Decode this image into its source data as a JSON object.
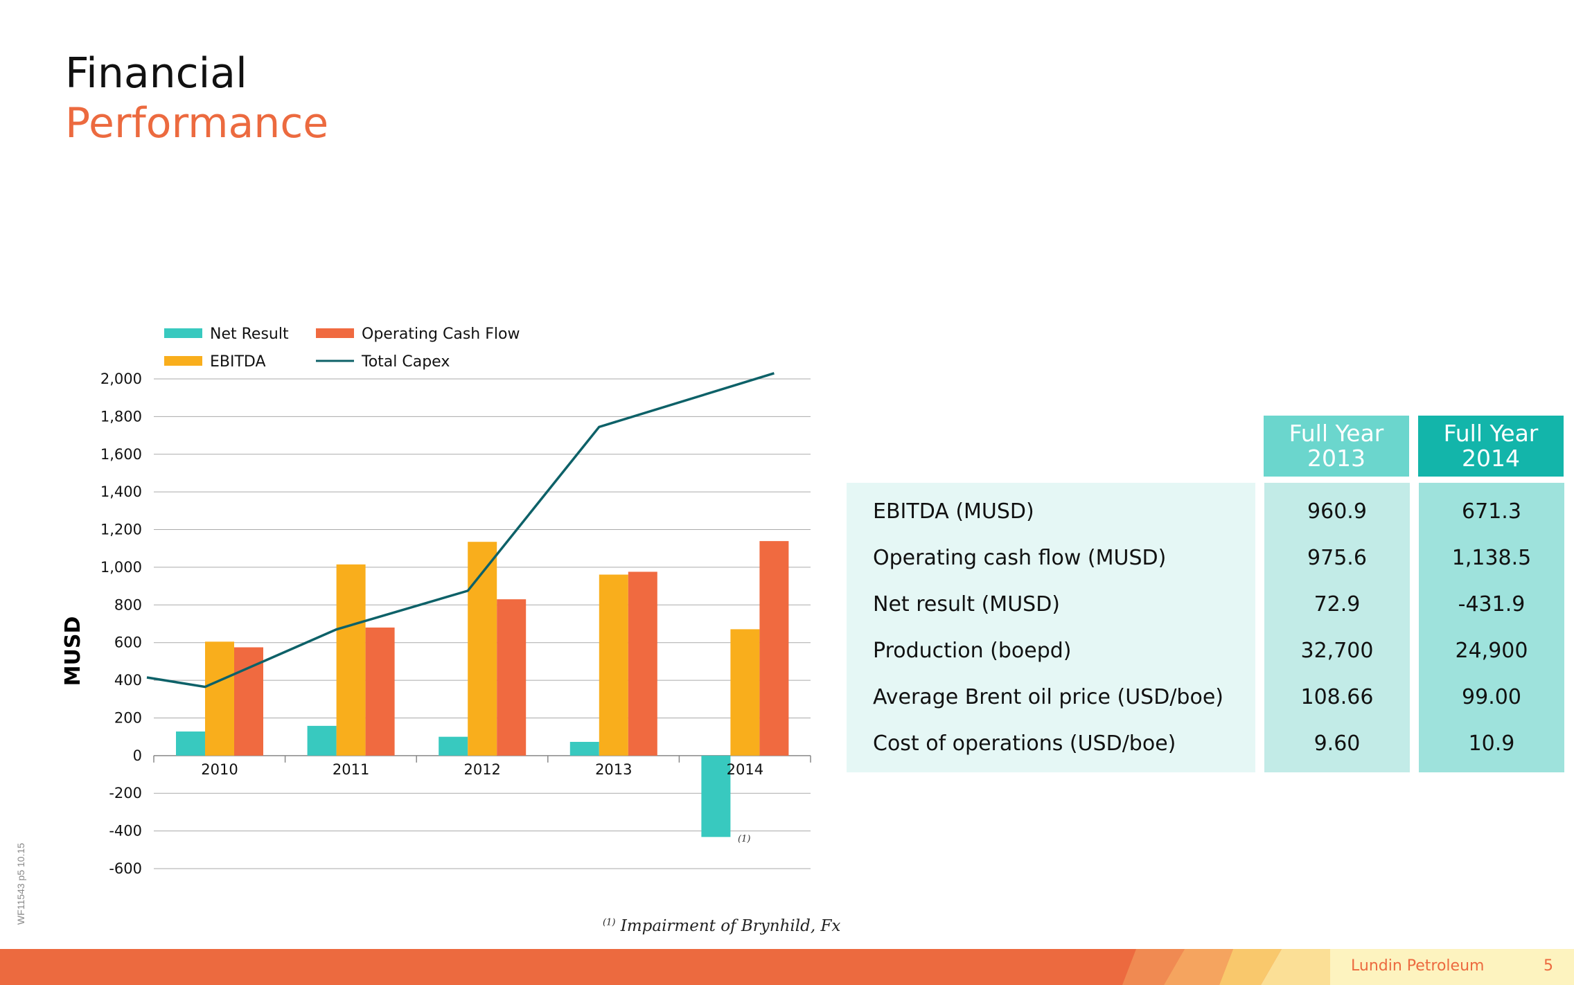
{
  "title": {
    "line1": "Financial",
    "line2": "Performance"
  },
  "side_code": "WF11543 p5 10.15",
  "chart_data": {
    "type": "bar",
    "categories": [
      "2010",
      "2011",
      "2012",
      "2013",
      "2014"
    ],
    "series": [
      {
        "name": "Net Result",
        "kind": "bar",
        "color": "#38c9bf",
        "values": [
          128,
          158,
          100,
          73,
          -432
        ]
      },
      {
        "name": "EBITDA",
        "kind": "bar",
        "color": "#f9ae1c",
        "values": [
          605,
          1015,
          1135,
          961,
          671
        ]
      },
      {
        "name": "Operating Cash Flow",
        "kind": "bar",
        "color": "#f06a40",
        "values": [
          575,
          680,
          830,
          976,
          1139
        ]
      },
      {
        "name": "Total Capex",
        "kind": "line",
        "color": "#0d6168",
        "values": [
          365,
          670,
          875,
          1745,
          2030
        ],
        "start_value": 415
      }
    ],
    "ylabel": "MUSD",
    "ylim": [
      -600,
      2000
    ],
    "yticks": [
      -600,
      -400,
      -200,
      0,
      200,
      400,
      600,
      800,
      1000,
      1200,
      1400,
      1600,
      1800,
      2000
    ],
    "ytick_labels": [
      "-600",
      "-400",
      "-200",
      "0",
      "200",
      "400",
      "600",
      "800",
      "1,000",
      "1,200",
      "1,400",
      "1,600",
      "1,800",
      "2,000"
    ],
    "grid": true,
    "legend_position": "top-left",
    "annotation": "(1)",
    "footnote_mark": "(1)",
    "footnote": "Impairment of Brynhild, Fx"
  },
  "table": {
    "headers": [
      {
        "line1": "Full Year",
        "line2": "2013"
      },
      {
        "line1": "Full Year",
        "line2": "2014"
      }
    ],
    "rows": [
      {
        "label": "EBITDA (MUSD)",
        "fy2013": "960.9",
        "fy2014": "671.3"
      },
      {
        "label": "Operating cash flow (MUSD)",
        "fy2013": "975.6",
        "fy2014": "1,138.5"
      },
      {
        "label": "Net result (MUSD)",
        "fy2013": "72.9",
        "fy2014": "-431.9"
      },
      {
        "label": "Production (boepd)",
        "fy2013": "32,700",
        "fy2014": "24,900"
      },
      {
        "label": "Average Brent oil price (USD/boe)",
        "fy2013": "108.66",
        "fy2014": "99.00"
      },
      {
        "label": "Cost of operations (USD/boe)",
        "fy2013": "9.60",
        "fy2014": "10.9"
      }
    ]
  },
  "footer": {
    "brand": "Lundin Petroleum",
    "page": "5"
  }
}
